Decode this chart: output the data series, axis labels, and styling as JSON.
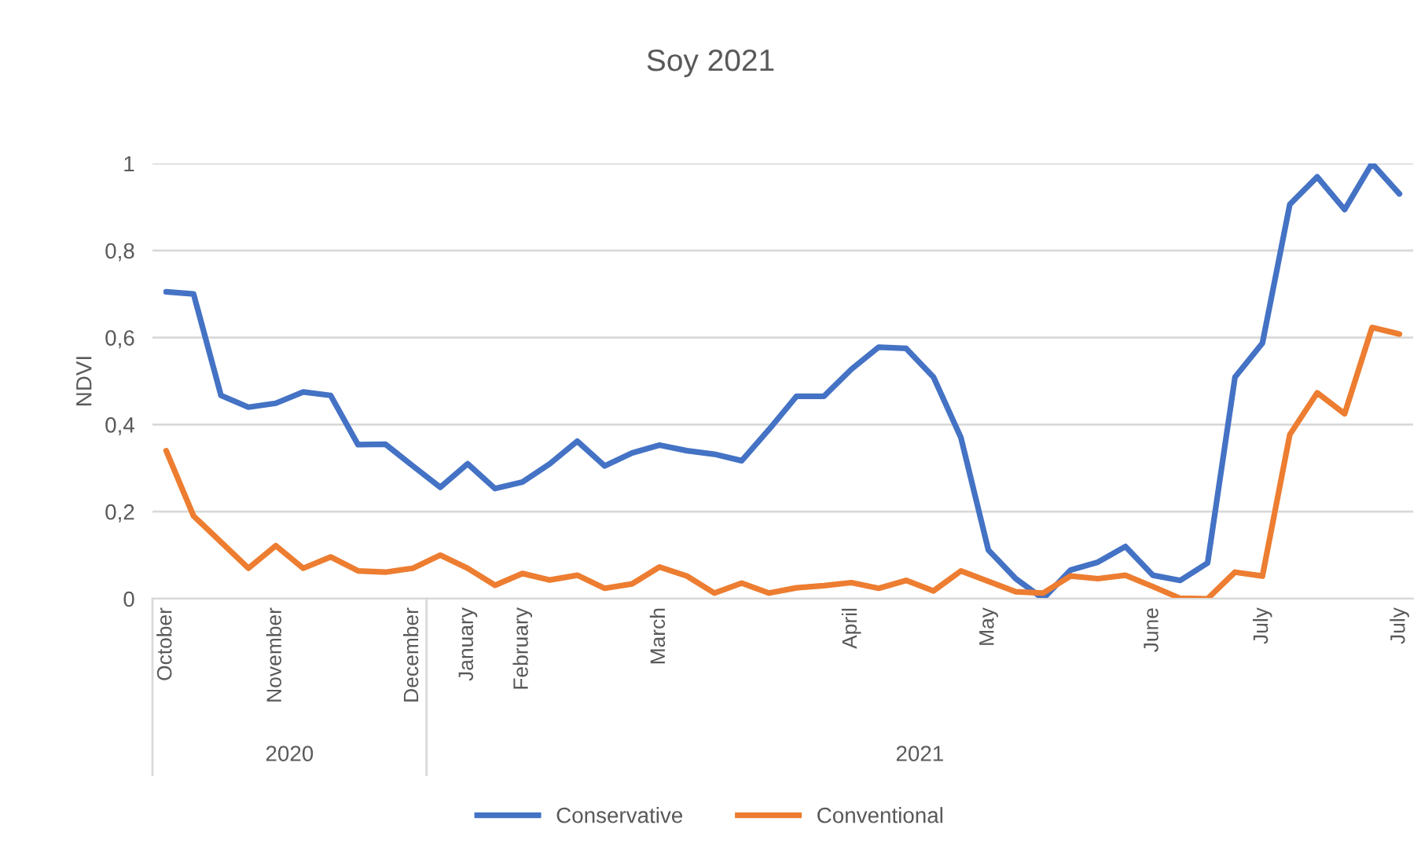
{
  "chart_data": {
    "type": "line",
    "title": "Soy 2021",
    "ylabel": "NDVI",
    "categories": [
      "October",
      null,
      null,
      null,
      "November",
      null,
      null,
      null,
      null,
      "December",
      null,
      "January",
      null,
      "February",
      null,
      null,
      null,
      null,
      "March",
      null,
      null,
      null,
      null,
      null,
      null,
      "April",
      null,
      null,
      null,
      null,
      "May",
      null,
      null,
      null,
      null,
      null,
      "June",
      null,
      null,
      null,
      "July",
      null,
      null,
      null,
      null,
      "July"
    ],
    "series": [
      {
        "name": "Conservative",
        "color": "#4472c4",
        "values": [
          0.705,
          0.7,
          0.467,
          0.44,
          0.449,
          0.475,
          0.467,
          0.354,
          0.355,
          0.305,
          0.256,
          0.31,
          0.253,
          0.268,
          0.31,
          0.362,
          0.305,
          0.335,
          0.353,
          0.34,
          0.332,
          0.317,
          0.389,
          0.465,
          0.465,
          0.527,
          0.578,
          0.575,
          0.509,
          0.37,
          0.112,
          0.046,
          0.0,
          0.066,
          0.084,
          0.12,
          0.054,
          0.042,
          0.082,
          0.509,
          0.587,
          0.906,
          0.969,
          0.894,
          1.0,
          0.93
        ]
      },
      {
        "name": "Conventional",
        "color": "#ed7d31",
        "values": [
          0.34,
          0.19,
          0.13,
          0.07,
          0.122,
          0.07,
          0.096,
          0.064,
          0.061,
          0.07,
          0.1,
          0.07,
          0.031,
          0.058,
          0.043,
          0.054,
          0.024,
          0.034,
          0.073,
          0.052,
          0.013,
          0.036,
          0.013,
          0.025,
          0.03,
          0.037,
          0.024,
          0.042,
          0.018,
          0.064,
          0.04,
          0.016,
          0.013,
          0.052,
          0.046,
          0.054,
          0.028,
          0.001,
          0.0,
          0.061,
          0.052,
          0.377,
          0.473,
          0.425,
          0.623,
          0.608
        ]
      }
    ],
    "ylim": [
      0,
      1
    ],
    "yticks": [
      0,
      {
        "value": 0.2,
        "label": "0,2"
      },
      {
        "value": 0.4,
        "label": "0,4"
      },
      {
        "value": 0.6,
        "label": "0,6"
      },
      {
        "value": 0.8,
        "label": "0,8"
      },
      1
    ],
    "grid": "y",
    "legend": "bottom",
    "marker": "none",
    "line_style": "solid",
    "annotations": [
      "2020",
      "2021"
    ]
  }
}
